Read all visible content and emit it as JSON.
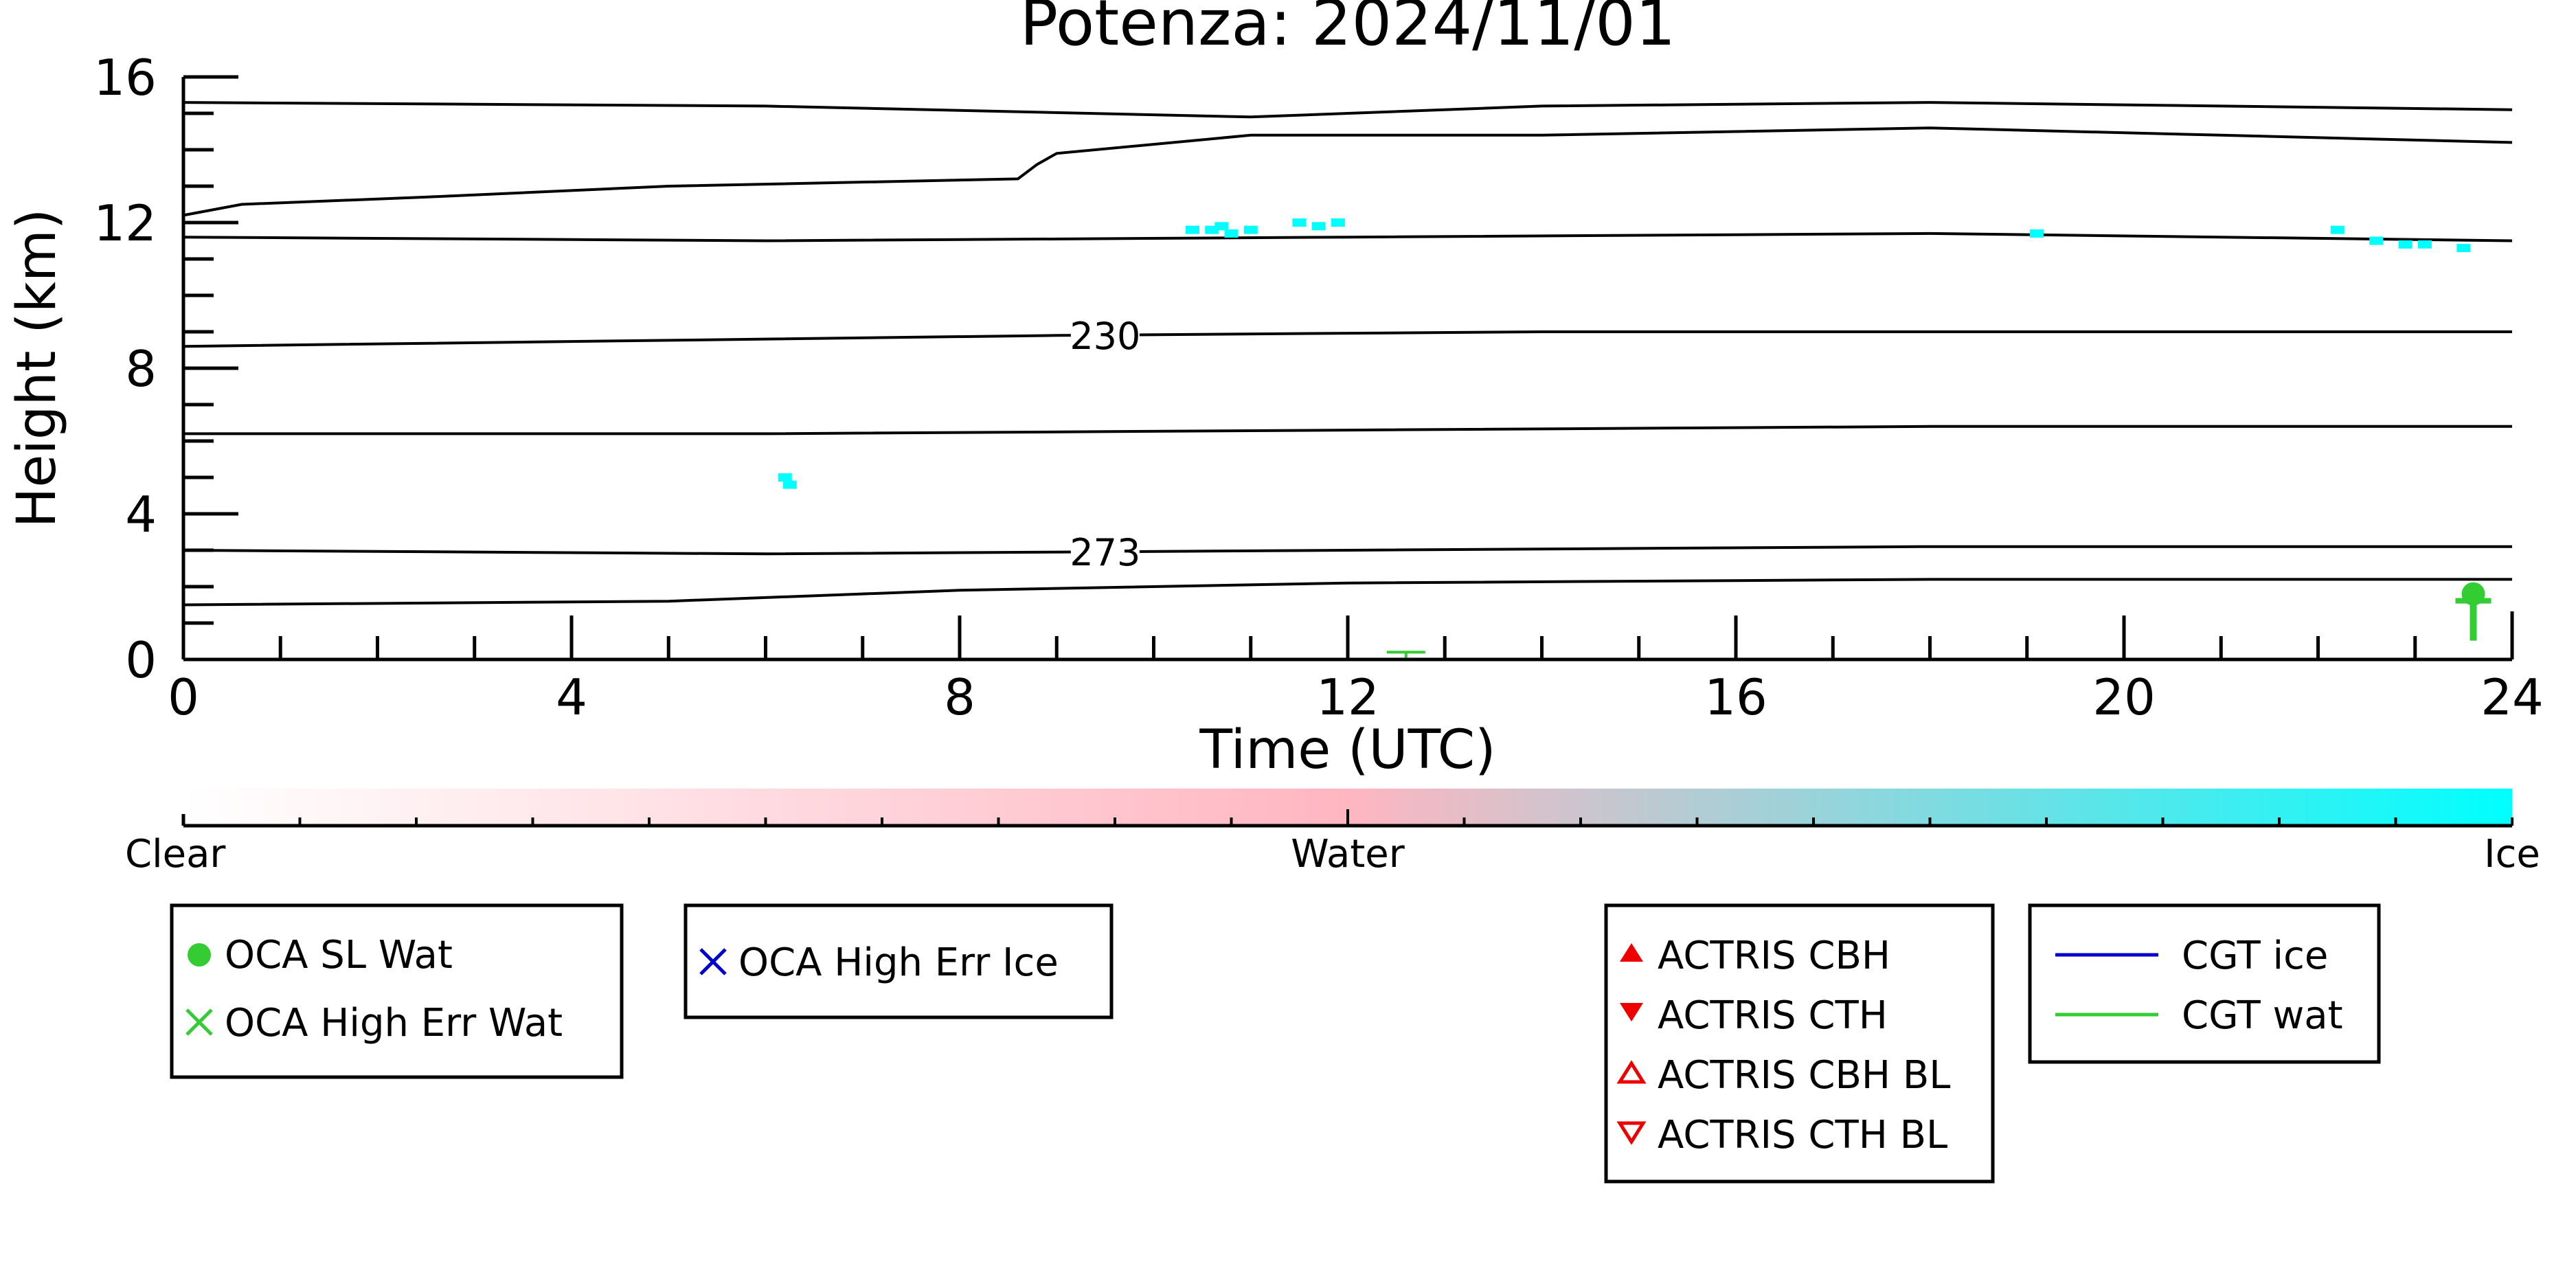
{
  "chart_data": {
    "type": "heatmap",
    "title": "Potenza: 2024/11/01",
    "xlabel": "Time (UTC)",
    "ylabel": "Height (km)",
    "xlim": [
      0,
      24
    ],
    "ylim": [
      0,
      16
    ],
    "x_ticks": [
      0,
      4,
      8,
      12,
      16,
      20,
      24
    ],
    "y_ticks": [
      0,
      4,
      8,
      12,
      16
    ],
    "x_tick_labels": [
      "0",
      "4",
      "8",
      "12",
      "16",
      "20",
      "24"
    ],
    "y_tick_labels": [
      "0",
      "4",
      "8",
      "12",
      "16"
    ],
    "colorbar": {
      "labels": [
        "Clear",
        "Water",
        "Ice"
      ],
      "colors": [
        "#ffffff",
        "#ffb6c1",
        "#00ffff"
      ]
    },
    "contours": [
      {
        "label": "",
        "points": [
          [
            0,
            15.3
          ],
          [
            6,
            15.2
          ],
          [
            11,
            14.9
          ],
          [
            14,
            15.2
          ],
          [
            18,
            15.3
          ],
          [
            24,
            15.1
          ]
        ]
      },
      {
        "label": "",
        "points": [
          [
            0,
            12.2
          ],
          [
            0.6,
            12.5
          ],
          [
            2.5,
            12.7
          ],
          [
            5,
            13.0
          ],
          [
            8.6,
            13.2
          ],
          [
            8.8,
            13.6
          ],
          [
            9,
            13.9
          ],
          [
            11,
            14.4
          ],
          [
            14,
            14.4
          ],
          [
            18,
            14.6
          ],
          [
            21,
            14.4
          ],
          [
            24,
            14.2
          ]
        ]
      },
      {
        "label": "",
        "points": [
          [
            0,
            11.6
          ],
          [
            6,
            11.5
          ],
          [
            12,
            11.6
          ],
          [
            18,
            11.7
          ],
          [
            24,
            11.5
          ]
        ]
      },
      {
        "label": "230",
        "label_x": 9.5,
        "points": [
          [
            0,
            8.6
          ],
          [
            6,
            8.8
          ],
          [
            9,
            8.9
          ],
          [
            14,
            9.0
          ],
          [
            24,
            9.0
          ]
        ]
      },
      {
        "label": "",
        "points": [
          [
            0,
            6.2
          ],
          [
            6,
            6.2
          ],
          [
            12,
            6.3
          ],
          [
            18,
            6.4
          ],
          [
            24,
            6.4
          ]
        ]
      },
      {
        "label": "273",
        "label_x": 9.5,
        "points": [
          [
            0,
            3.0
          ],
          [
            6,
            2.9
          ],
          [
            12,
            3.0
          ],
          [
            18,
            3.1
          ],
          [
            24,
            3.1
          ]
        ]
      },
      {
        "label": "",
        "points": [
          [
            0,
            1.5
          ],
          [
            5,
            1.6
          ],
          [
            8,
            1.9
          ],
          [
            12,
            2.1
          ],
          [
            18,
            2.2
          ],
          [
            24,
            2.2
          ]
        ]
      }
    ],
    "ice_cloud_points": [
      [
        10.4,
        11.8
      ],
      [
        10.6,
        11.8
      ],
      [
        10.8,
        11.7
      ],
      [
        11.0,
        11.8
      ],
      [
        10.7,
        11.9
      ],
      [
        11.5,
        12.0
      ],
      [
        11.7,
        11.9
      ],
      [
        11.9,
        12.0
      ],
      [
        19.1,
        11.7
      ],
      [
        22.2,
        11.8
      ],
      [
        22.6,
        11.5
      ],
      [
        22.9,
        11.4
      ],
      [
        23.1,
        11.4
      ],
      [
        23.5,
        11.3
      ],
      [
        6.2,
        5.0
      ],
      [
        6.25,
        4.8
      ]
    ],
    "cgt_wat_markers": [
      {
        "x": 12.6,
        "y": 0.2
      }
    ],
    "oca_sl_wat_markers": [
      {
        "x": 23.6,
        "y": 1.8
      }
    ],
    "legends": [
      {
        "entries": [
          {
            "label": "OCA SL Wat",
            "marker": "circle",
            "color": "#33cc33"
          },
          {
            "label": "OCA High Err Wat",
            "marker": "x",
            "color": "#33cc33"
          }
        ]
      },
      {
        "entries": [
          {
            "label": "OCA High Err Ice",
            "marker": "x",
            "color": "#0000cc"
          }
        ]
      },
      {
        "entries": [
          {
            "label": "ACTRIS CBH",
            "marker": "triangle-up",
            "color": "#ee0000"
          },
          {
            "label": "ACTRIS CTH",
            "marker": "triangle-down",
            "color": "#ee0000"
          },
          {
            "label": "ACTRIS CBH BL",
            "marker": "triangle-up-open",
            "color": "#ee0000"
          },
          {
            "label": "ACTRIS CTH BL",
            "marker": "triangle-down-open",
            "color": "#ee0000"
          }
        ]
      },
      {
        "entries": [
          {
            "label": "CGT ice",
            "marker": "line",
            "color": "#0000cc"
          },
          {
            "label": "CGT wat",
            "marker": "line",
            "color": "#33cc33"
          }
        ]
      }
    ]
  }
}
